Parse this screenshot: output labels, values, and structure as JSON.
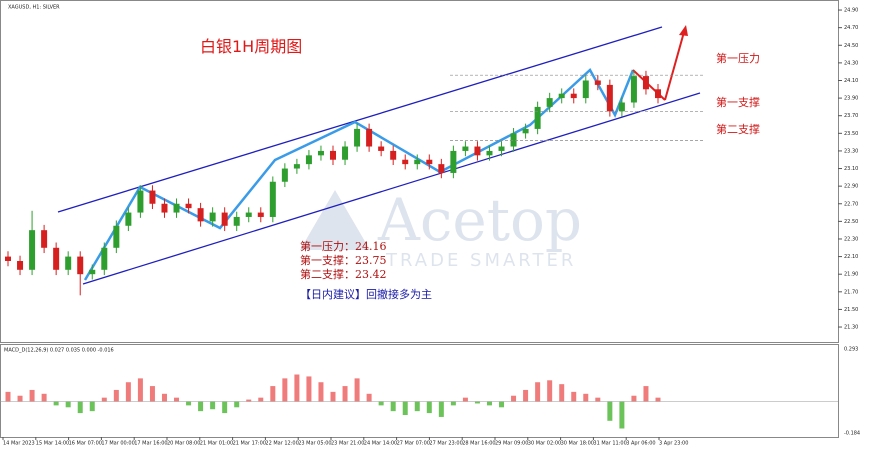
{
  "header": {
    "symbol": "XAGUSD, H1: SILVER",
    "chart_title": "白银1H周期图",
    "watermark": "Acetop",
    "watermark_tagline": "TRADE SMARTER"
  },
  "levels": [
    {
      "name": "第一压力",
      "label": "第一压力：",
      "value": 24.16
    },
    {
      "name": "第一支撑",
      "label": "第一支撑：",
      "value": 23.75
    },
    {
      "name": "第二支撑",
      "label": "第二支撑：",
      "value": 23.42
    }
  ],
  "advice": "【日内建议】回撤接多为主",
  "chart_data": [
    {
      "type": "candlestick",
      "colors": {
        "up": "#2e9e2e",
        "down": "#d62020"
      },
      "open": [
        22.1,
        22.05,
        21.95,
        22.4,
        22.2,
        21.95,
        22.1,
        21.9,
        21.95,
        22.2,
        22.45,
        22.6,
        22.85,
        22.7,
        22.6,
        22.7,
        22.65,
        22.5,
        22.6,
        22.45,
        22.55,
        22.6,
        22.55,
        22.95,
        23.1,
        23.15,
        23.25,
        23.3,
        23.2,
        23.35,
        23.55,
        23.35,
        23.3,
        23.2,
        23.15,
        23.2,
        23.15,
        23.05,
        23.3,
        23.35,
        23.25,
        23.3,
        23.35,
        23.5,
        23.55,
        23.8,
        23.9,
        23.95,
        23.9,
        24.1,
        24.05,
        23.75,
        23.85,
        24.15,
        24.0
      ],
      "high": [
        22.16,
        22.11,
        22.62,
        22.46,
        22.26,
        22.16,
        22.16,
        22.01,
        22.26,
        22.51,
        22.66,
        22.91,
        22.91,
        22.76,
        22.76,
        22.76,
        22.71,
        22.66,
        22.66,
        22.61,
        22.66,
        22.66,
        23.01,
        23.16,
        23.21,
        23.31,
        23.36,
        23.36,
        23.41,
        23.61,
        23.61,
        23.41,
        23.36,
        23.26,
        23.26,
        23.26,
        23.21,
        23.36,
        23.41,
        23.41,
        23.36,
        23.41,
        23.56,
        23.61,
        23.86,
        23.96,
        24.01,
        24.01,
        24.16,
        24.16,
        24.11,
        23.91,
        24.21,
        24.21,
        24.06
      ],
      "low": [
        21.99,
        21.89,
        21.89,
        22.14,
        21.89,
        21.89,
        21.66,
        21.84,
        21.89,
        22.14,
        22.39,
        22.54,
        22.64,
        22.54,
        22.54,
        22.59,
        22.44,
        22.44,
        22.39,
        22.39,
        22.49,
        22.49,
        22.49,
        22.89,
        23.04,
        23.09,
        23.19,
        23.14,
        23.14,
        23.29,
        23.29,
        23.24,
        23.14,
        23.09,
        23.09,
        23.09,
        22.99,
        22.99,
        23.24,
        23.19,
        23.19,
        23.24,
        23.29,
        23.44,
        23.49,
        23.74,
        23.84,
        23.84,
        23.84,
        23.99,
        23.69,
        23.69,
        23.79,
        23.94,
        23.84
      ],
      "close": [
        22.05,
        21.95,
        22.4,
        22.2,
        21.95,
        22.1,
        21.9,
        21.95,
        22.2,
        22.45,
        22.6,
        22.85,
        22.7,
        22.6,
        22.7,
        22.65,
        22.5,
        22.6,
        22.45,
        22.55,
        22.6,
        22.55,
        22.95,
        23.1,
        23.15,
        23.25,
        23.3,
        23.2,
        23.35,
        23.55,
        23.35,
        23.3,
        23.2,
        23.15,
        23.2,
        23.15,
        23.05,
        23.3,
        23.35,
        23.25,
        23.3,
        23.35,
        23.5,
        23.55,
        23.8,
        23.9,
        23.95,
        23.9,
        24.1,
        24.05,
        23.75,
        23.85,
        24.15,
        24.0,
        23.9
      ],
      "ylim": [
        21.13,
        24.98
      ],
      "yticks": [
        {
          "value": 24.9,
          "label": "24.90"
        },
        {
          "value": 24.7,
          "label": "24.70"
        },
        {
          "value": 24.5,
          "label": "24.50"
        },
        {
          "value": 24.3,
          "label": "24.30"
        },
        {
          "value": 24.1,
          "label": "24.10"
        },
        {
          "value": 23.9,
          "label": "23.90"
        },
        {
          "value": 23.7,
          "label": "23.70"
        },
        {
          "value": 23.5,
          "label": "23.50"
        },
        {
          "value": 23.3,
          "label": "23.30"
        },
        {
          "value": 23.1,
          "label": "23.10"
        },
        {
          "value": 22.9,
          "label": "22.90"
        },
        {
          "value": 22.7,
          "label": "22.70"
        },
        {
          "value": 22.5,
          "label": "22.50"
        },
        {
          "value": 22.3,
          "label": "22.30"
        },
        {
          "value": 22.1,
          "label": "22.10"
        },
        {
          "value": 21.9,
          "label": "21.90"
        },
        {
          "value": 21.7,
          "label": "21.70"
        },
        {
          "value": 21.5,
          "label": "21.50"
        },
        {
          "value": 21.3,
          "label": "21.30"
        }
      ],
      "time_labels": [
        "14 Mar 2023",
        "15 Mar 14:00",
        "16 Mar 07:00",
        "17 Mar 00:00",
        "17 Mar 16:00",
        "20 Mar 08:00",
        "21 Mar 01:00",
        "21 Mar 17:00",
        "22 Mar 12:00",
        "23 Mar 05:00",
        "23 Mar 21:00",
        "24 Mar 14:00",
        "27 Mar 07:00",
        "27 Mar 23:00",
        "28 Mar 16:00",
        "29 Mar 09:00",
        "30 Mar 02:00",
        "30 Mar 18:00",
        "31 Mar 11:00",
        "3 Apr 06:00",
        "3 Apr 23:00"
      ]
    },
    {
      "type": "bar",
      "title": "MACD_D(12,26,9) 0.027 0.035 0.000 -0.016",
      "colors": {
        "positive": "#f07b7b",
        "negative": "#6cc35a"
      },
      "values": [
        0.05,
        0.03,
        0.06,
        0.04,
        -0.02,
        -0.03,
        -0.06,
        -0.05,
        0.02,
        0.06,
        0.1,
        0.12,
        0.08,
        0.04,
        0.02,
        -0.02,
        -0.05,
        -0.04,
        -0.06,
        -0.03,
        0.01,
        0.02,
        0.08,
        0.12,
        0.14,
        0.13,
        0.1,
        0.05,
        0.08,
        0.12,
        0.04,
        -0.02,
        -0.05,
        -0.07,
        -0.05,
        -0.06,
        -0.08,
        -0.02,
        0.02,
        -0.01,
        -0.02,
        -0.03,
        0.03,
        0.06,
        0.1,
        0.11,
        0.09,
        0.05,
        0.04,
        0.02,
        -0.1,
        -0.14,
        0.03,
        0.08,
        0.02
      ],
      "ylim": [
        -0.184,
        0.293
      ],
      "yticks": [
        0.293,
        -0.184
      ]
    }
  ]
}
